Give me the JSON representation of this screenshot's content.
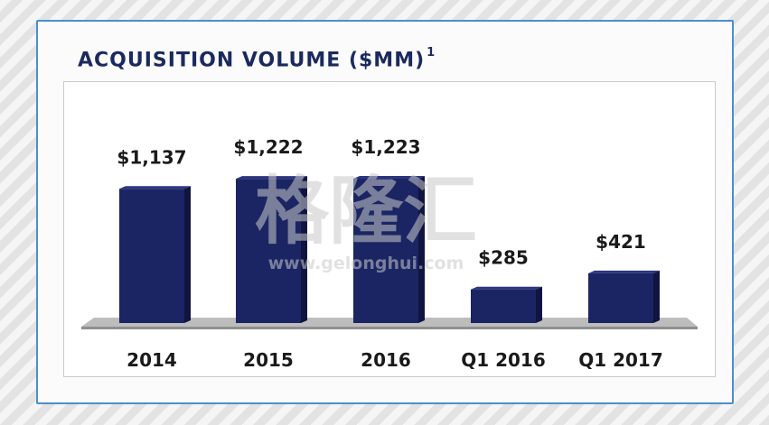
{
  "chart_data": {
    "type": "bar",
    "title": "ACQUISITION VOLUME ($MM)",
    "title_footnote": "1",
    "categories": [
      "2014",
      "2015",
      "2016",
      "Q1 2016",
      "Q1 2017"
    ],
    "values": [
      1137,
      1222,
      1223,
      285,
      421
    ],
    "data_labels": [
      "$1,137",
      "$1,222",
      "$1,223",
      "$285",
      "$421"
    ],
    "xlabel": "",
    "ylabel": "",
    "ylim": [
      0,
      1223
    ],
    "grid": false,
    "legend": "none",
    "bar_color": "#1b2563"
  },
  "watermark": {
    "chinese": "格隆汇",
    "url": "www.gelonghui.com"
  }
}
